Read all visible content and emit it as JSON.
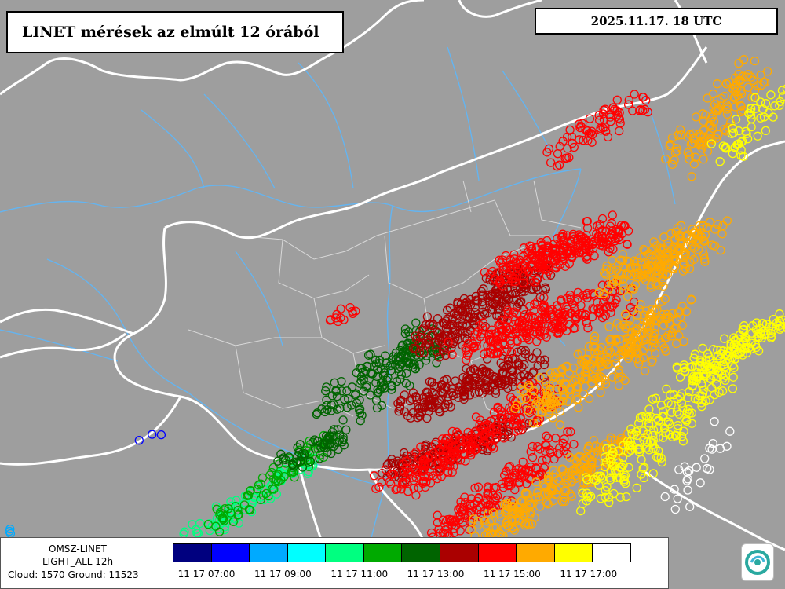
{
  "title": "LINET mérések az elmúlt 12 órából",
  "timestamp": "2025.11.17. 18 UTC",
  "info": {
    "source": "OMSZ-LINET",
    "product": "LIGHT_ALL 12h",
    "counts": "Cloud: 1570 Ground: 11523"
  },
  "legend": {
    "colors": [
      "#00007f",
      "#0000ff",
      "#00aaff",
      "#00ffff",
      "#00ff80",
      "#00aa00",
      "#006400",
      "#aa0000",
      "#ff0000",
      "#ffaa00",
      "#ffff00",
      "#ffffff"
    ],
    "ticks": [
      "11 17 07:00",
      "11 17 09:00",
      "11 17 11:00",
      "11 17 13:00",
      "11 17 15:00",
      "11 17 17:00"
    ]
  },
  "map_colors": {
    "background": "#9e9e9e",
    "country_border": "#ffffff",
    "rivers": "#64b4f0",
    "county_border": "#d8d8d8"
  },
  "lightning_hours": [
    {
      "hour": "06-07",
      "color": "#00007f"
    },
    {
      "hour": "07-08",
      "color": "#0000ff"
    },
    {
      "hour": "08-09",
      "color": "#00aaff"
    },
    {
      "hour": "09-10",
      "color": "#00ffff"
    },
    {
      "hour": "10-11",
      "color": "#00ff80"
    },
    {
      "hour": "11-12",
      "color": "#00aa00"
    },
    {
      "hour": "12-13",
      "color": "#006400"
    },
    {
      "hour": "13-14",
      "color": "#aa0000"
    },
    {
      "hour": "14-15",
      "color": "#ff0000"
    },
    {
      "hour": "15-16",
      "color": "#ffaa00"
    },
    {
      "hour": "16-17",
      "color": "#ffff00"
    },
    {
      "hour": "17-18",
      "color": "#ffffff"
    }
  ],
  "logo": {
    "icon": "omsz-logo-icon"
  }
}
